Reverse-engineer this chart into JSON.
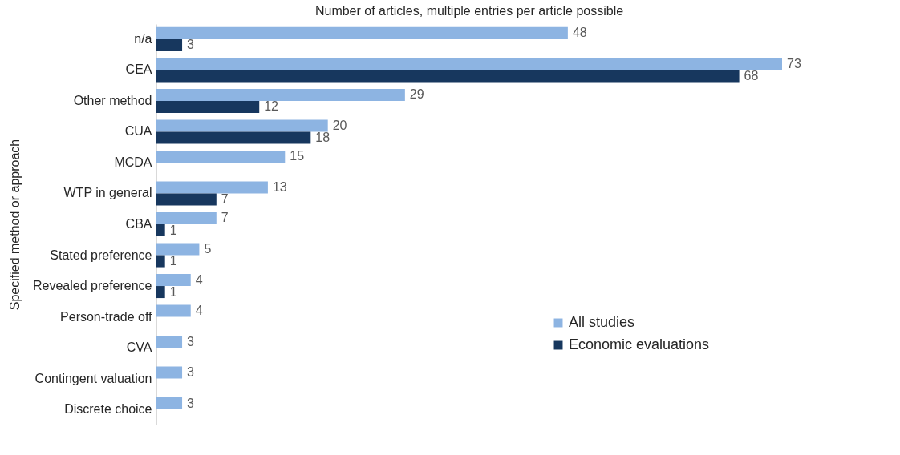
{
  "chart_data": {
    "type": "bar",
    "orientation": "horizontal",
    "title": "Number of articles, multiple entries per article possible",
    "ylabel": "Specified method or approach",
    "categories": [
      "n/a",
      "CEA",
      "Other method",
      "CUA",
      "MCDA",
      "WTP in general",
      "CBA",
      "Stated preference",
      "Revealed preference",
      "Person-trade off",
      "CVA",
      "Contingent valuation",
      "Discrete choice"
    ],
    "series": [
      {
        "name": "All studies",
        "color": "#8db4e2",
        "values": [
          48,
          73,
          29,
          20,
          15,
          13,
          7,
          5,
          4,
          4,
          3,
          3,
          3
        ]
      },
      {
        "name": "Economic evaluations",
        "color": "#17375e",
        "values": [
          3,
          68,
          12,
          18,
          null,
          7,
          1,
          1,
          1,
          null,
          null,
          null,
          null
        ]
      }
    ],
    "data_labels": true,
    "legend": "bottom right"
  }
}
